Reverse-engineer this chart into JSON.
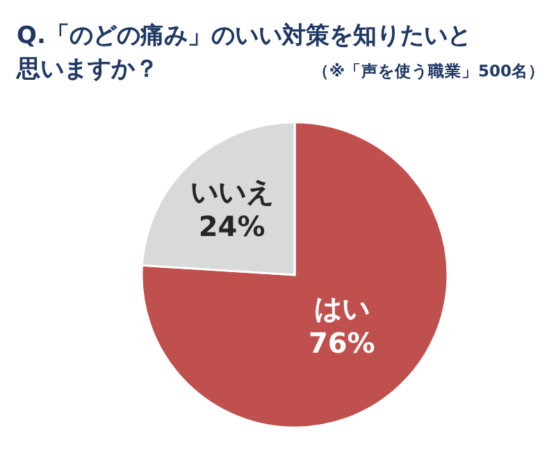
{
  "chart_data": {
    "type": "pie",
    "title": "Q.「のどの痛み」のいい対策を知りたいと思いますか？",
    "subtitle": "（※「声を使う職業」500名）",
    "categories": [
      "はい",
      "いいえ"
    ],
    "values": [
      76,
      24
    ],
    "colors": [
      "#c0504d",
      "#d9d9d9"
    ],
    "value_labels": [
      "76%",
      "24%"
    ]
  }
}
